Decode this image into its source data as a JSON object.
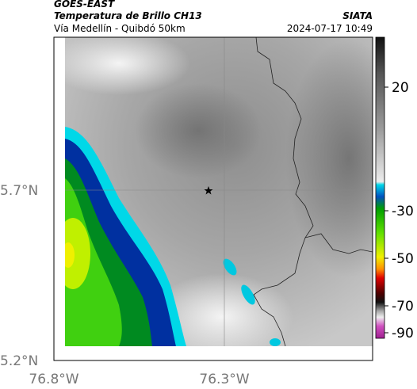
{
  "header": {
    "satellite": "GOES-EAST",
    "product": "Temperatura de Brillo CH13",
    "source": "SIATA",
    "region": "Vía Medellín - Quibdó 50km",
    "timestamp": "2024-07-17 10:49"
  },
  "map": {
    "lat_ticks": [
      "5.7°N",
      "5.2°N"
    ],
    "lon_ticks": [
      "76.8°W",
      "76.3°W"
    ]
  },
  "colorbar": {
    "ticks": [
      20,
      -30,
      -50,
      -70,
      -90
    ]
  }
}
